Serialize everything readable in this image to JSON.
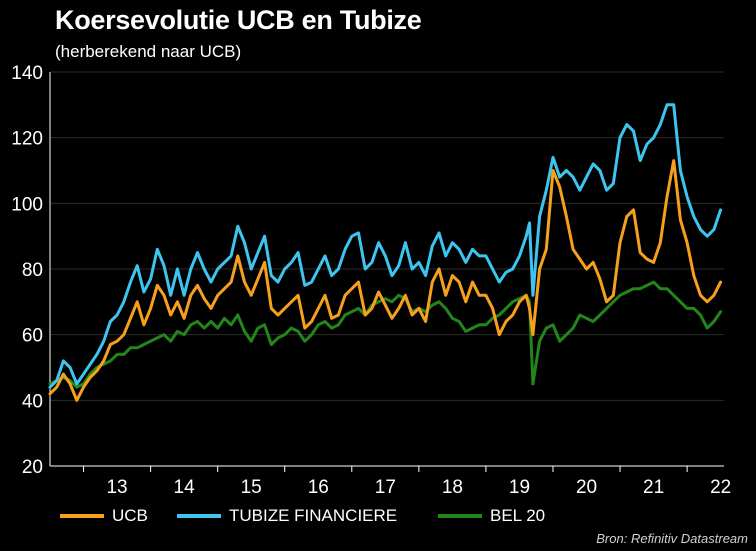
{
  "chart_data": {
    "type": "line",
    "title": "Koersevolutie UCB en Tubize",
    "subtitle": "(herberekend naar UCB)",
    "xlabel": "",
    "ylabel": "",
    "ylim": [
      20,
      140
    ],
    "yticks": [
      20,
      40,
      60,
      80,
      100,
      120,
      140
    ],
    "xlim": [
      2012.5,
      2022.55
    ],
    "xticks": [
      {
        "label": "13",
        "value": 2013.0
      },
      {
        "label": "14",
        "value": 2014.0
      },
      {
        "label": "15",
        "value": 2015.0
      },
      {
        "label": "16",
        "value": 2016.0
      },
      {
        "label": "17",
        "value": 2017.0
      },
      {
        "label": "18",
        "value": 2018.0
      },
      {
        "label": "19",
        "value": 2019.0
      },
      {
        "label": "20",
        "value": 2020.0
      },
      {
        "label": "21",
        "value": 2021.0
      },
      {
        "label": "22",
        "value": 2022.0
      }
    ],
    "grid": true,
    "legend_position": "bottom",
    "x": [
      2012.5,
      2012.6,
      2012.7,
      2012.8,
      2012.9,
      2013.0,
      2013.1,
      2013.2,
      2013.3,
      2013.4,
      2013.5,
      2013.6,
      2013.7,
      2013.8,
      2013.9,
      2014.0,
      2014.1,
      2014.2,
      2014.3,
      2014.4,
      2014.5,
      2014.6,
      2014.7,
      2014.8,
      2014.9,
      2015.0,
      2015.1,
      2015.2,
      2015.3,
      2015.4,
      2015.5,
      2015.6,
      2015.7,
      2015.8,
      2015.9,
      2016.0,
      2016.1,
      2016.2,
      2016.3,
      2016.4,
      2016.5,
      2016.6,
      2016.7,
      2016.8,
      2016.9,
      2017.0,
      2017.1,
      2017.2,
      2017.3,
      2017.4,
      2017.5,
      2017.6,
      2017.7,
      2017.8,
      2017.9,
      2018.0,
      2018.1,
      2018.2,
      2018.3,
      2018.4,
      2018.5,
      2018.6,
      2018.7,
      2018.8,
      2018.9,
      2019.0,
      2019.1,
      2019.2,
      2019.3,
      2019.4,
      2019.5,
      2019.6,
      2019.65,
      2019.7,
      2019.8,
      2019.9,
      2020.0,
      2020.1,
      2020.2,
      2020.3,
      2020.4,
      2020.5,
      2020.6,
      2020.7,
      2020.8,
      2020.9,
      2021.0,
      2021.1,
      2021.2,
      2021.3,
      2021.4,
      2021.5,
      2021.6,
      2021.7,
      2021.8,
      2021.9,
      2022.0,
      2022.1,
      2022.2,
      2022.3,
      2022.4,
      2022.5
    ],
    "series": [
      {
        "name": "UCB",
        "color": "#f7a01d",
        "values": [
          42,
          44,
          48,
          45,
          40,
          44,
          47,
          49,
          52,
          57,
          58,
          60,
          65,
          70,
          63,
          68,
          75,
          72,
          66,
          70,
          65,
          72,
          75,
          71,
          68,
          72,
          74,
          76,
          84,
          76,
          72,
          77,
          82,
          68,
          66,
          68,
          70,
          72,
          62,
          64,
          68,
          72,
          65,
          66,
          72,
          74,
          76,
          66,
          68,
          73,
          69,
          65,
          68,
          72,
          66,
          68,
          64,
          76,
          80,
          72,
          78,
          76,
          70,
          76,
          72,
          72,
          68,
          60,
          64,
          66,
          70,
          72,
          68,
          60,
          80,
          86,
          110,
          105,
          96,
          86,
          83,
          80,
          82,
          77,
          70,
          72,
          88,
          96,
          98,
          85,
          83,
          82,
          88,
          102,
          113,
          95,
          88,
          78,
          72,
          70,
          72,
          76
        ]
      },
      {
        "name": "TUBIZE FINANCIERE",
        "color": "#3dc5ef",
        "values": [
          44,
          46,
          52,
          50,
          45,
          48,
          51,
          54,
          58,
          64,
          66,
          70,
          76,
          81,
          73,
          77,
          86,
          81,
          72,
          80,
          72,
          80,
          85,
          80,
          76,
          80,
          82,
          84,
          93,
          88,
          80,
          85,
          90,
          78,
          76,
          80,
          82,
          85,
          75,
          76,
          80,
          84,
          78,
          80,
          86,
          90,
          91,
          80,
          82,
          88,
          84,
          78,
          81,
          88,
          80,
          82,
          78,
          87,
          91,
          84,
          88,
          86,
          82,
          86,
          84,
          84,
          80,
          76,
          79,
          80,
          84,
          90,
          94,
          72,
          96,
          104,
          114,
          108,
          110,
          108,
          104,
          108,
          112,
          110,
          104,
          106,
          120,
          124,
          122,
          113,
          118,
          120,
          124,
          130,
          130,
          110,
          102,
          96,
          92,
          90,
          92,
          98
        ]
      },
      {
        "name": "BEL 20",
        "color": "#22861a",
        "values": [
          45,
          46,
          47,
          46,
          44,
          45,
          48,
          50,
          51,
          52,
          54,
          54,
          56,
          56,
          57,
          58,
          59,
          60,
          58,
          61,
          60,
          63,
          64,
          62,
          64,
          62,
          65,
          63,
          66,
          61,
          58,
          62,
          63,
          57,
          59,
          60,
          62,
          61,
          58,
          60,
          63,
          64,
          62,
          63,
          66,
          67,
          68,
          66,
          69,
          70,
          71,
          70,
          72,
          71,
          67,
          68,
          67,
          69,
          70,
          68,
          65,
          64,
          61,
          62,
          63,
          63,
          65,
          66,
          68,
          70,
          71,
          72,
          70,
          45,
          58,
          62,
          63,
          58,
          60,
          62,
          66,
          65,
          64,
          66,
          68,
          70,
          72,
          73,
          74,
          74,
          75,
          76,
          74,
          74,
          72,
          70,
          68,
          68,
          66,
          62,
          64,
          67
        ]
      }
    ]
  },
  "legend": [
    {
      "label": "UCB",
      "color": "#f7a01d"
    },
    {
      "label": "TUBIZE FINANCIERE",
      "color": "#3dc5ef"
    },
    {
      "label": "BEL 20",
      "color": "#22861a"
    }
  ],
  "source": "Bron: Refinitiv Datastream"
}
